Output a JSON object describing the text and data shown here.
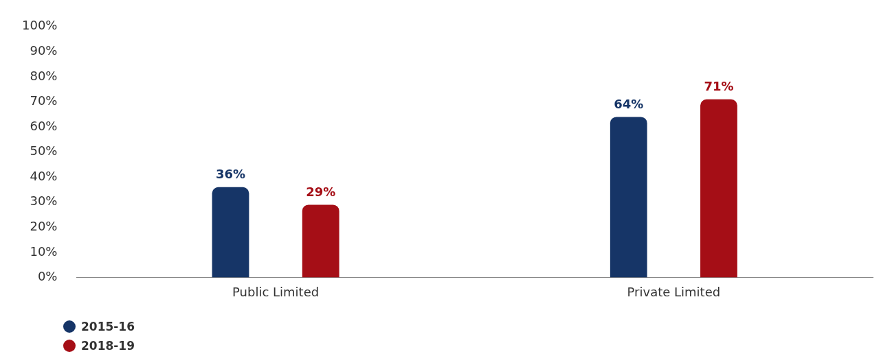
{
  "chart_data": {
    "type": "bar",
    "categories": [
      "Public Limited",
      "Private Limited"
    ],
    "series": [
      {
        "name": "2015-16",
        "color": "#163567",
        "values": [
          36,
          64
        ],
        "value_labels": [
          "36%",
          "64%"
        ]
      },
      {
        "name": "2018-19",
        "color": "#a50e16",
        "values": [
          29,
          71
        ],
        "value_labels": [
          "29%",
          "71%"
        ]
      }
    ],
    "ylim": [
      0,
      100
    ],
    "yticks": [
      {
        "value": 0,
        "label": "0%"
      },
      {
        "value": 10,
        "label": "10%"
      },
      {
        "value": 20,
        "label": "20%"
      },
      {
        "value": 30,
        "label": "30%"
      },
      {
        "value": 40,
        "label": "40%"
      },
      {
        "value": 50,
        "label": "50%"
      },
      {
        "value": 60,
        "label": "60%"
      },
      {
        "value": 70,
        "label": "70%"
      },
      {
        "value": 80,
        "label": "80%"
      },
      {
        "value": 90,
        "label": "90%"
      },
      {
        "value": 100,
        "label": "100%"
      }
    ],
    "grid": false,
    "legend": "bottom left"
  }
}
